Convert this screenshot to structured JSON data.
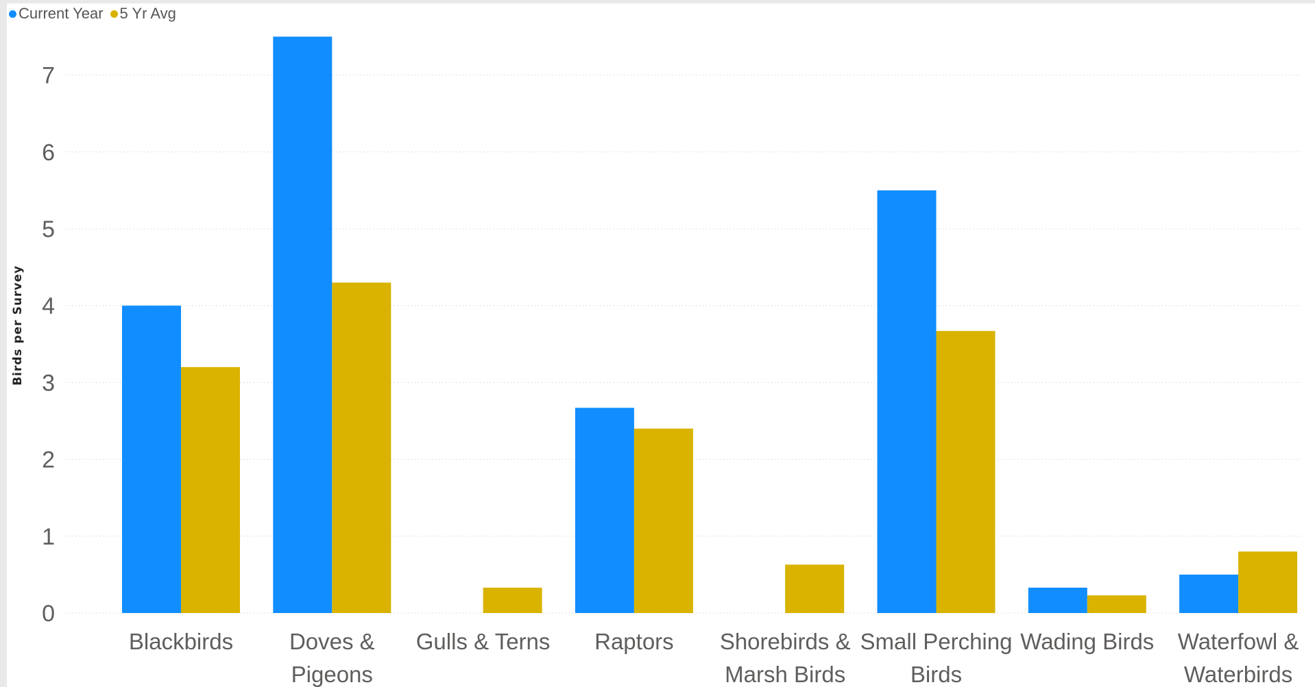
{
  "chart_data": {
    "type": "bar",
    "title": "",
    "xlabel": "",
    "ylabel": "Birds per Survey",
    "categories": [
      [
        "Blackbirds"
      ],
      [
        "Doves &",
        "Pigeons"
      ],
      [
        "Gulls & Terns"
      ],
      [
        "Raptors"
      ],
      [
        "Shorebirds &",
        "Marsh Birds"
      ],
      [
        "Small Perching",
        "Birds"
      ],
      [
        "Wading Birds"
      ],
      [
        "Waterfowl &",
        "Waterbirds"
      ]
    ],
    "series": [
      {
        "name": "Current Year",
        "color": "#118dff",
        "values": [
          4.0,
          7.5,
          0,
          2.67,
          0,
          5.5,
          0.33,
          0.5
        ]
      },
      {
        "name": "5 Yr Avg",
        "color": "#d9b300",
        "values": [
          3.2,
          4.3,
          0.33,
          2.4,
          0.63,
          3.67,
          0.23,
          0.8
        ]
      }
    ],
    "ylim": [
      0,
      7.5
    ],
    "yticks": [
      "0",
      "1",
      "2",
      "3",
      "4",
      "5",
      "6",
      "7"
    ],
    "grid": true,
    "legend_position": "top-left"
  }
}
